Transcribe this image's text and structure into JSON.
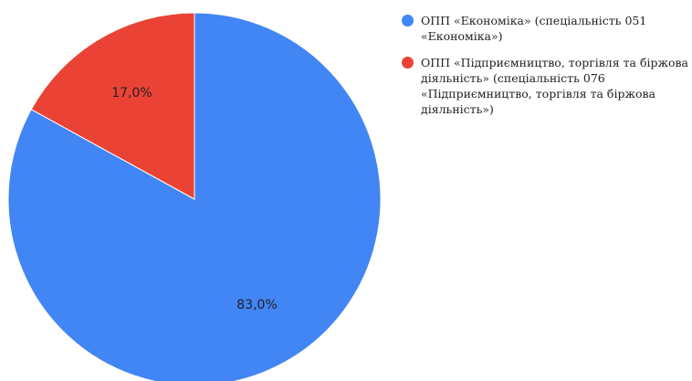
{
  "chart_data": {
    "type": "pie",
    "title": "",
    "start_angle_deg": 0,
    "direction": "clockwise",
    "legend_position": "right",
    "slices": [
      {
        "label": "ОПП «Економіка» (спеціальність 051 «Економіка»)",
        "value": 83.0,
        "display": "83,0%",
        "color": "#4285f4"
      },
      {
        "label": "ОПП «Підприємництво, торгівля та біржова діяльність» (спеціальність 076 «Підприємництво, торгівля та біржова діяльність»)",
        "value": 17.0,
        "display": "17,0%",
        "color": "#ea4335"
      }
    ]
  }
}
